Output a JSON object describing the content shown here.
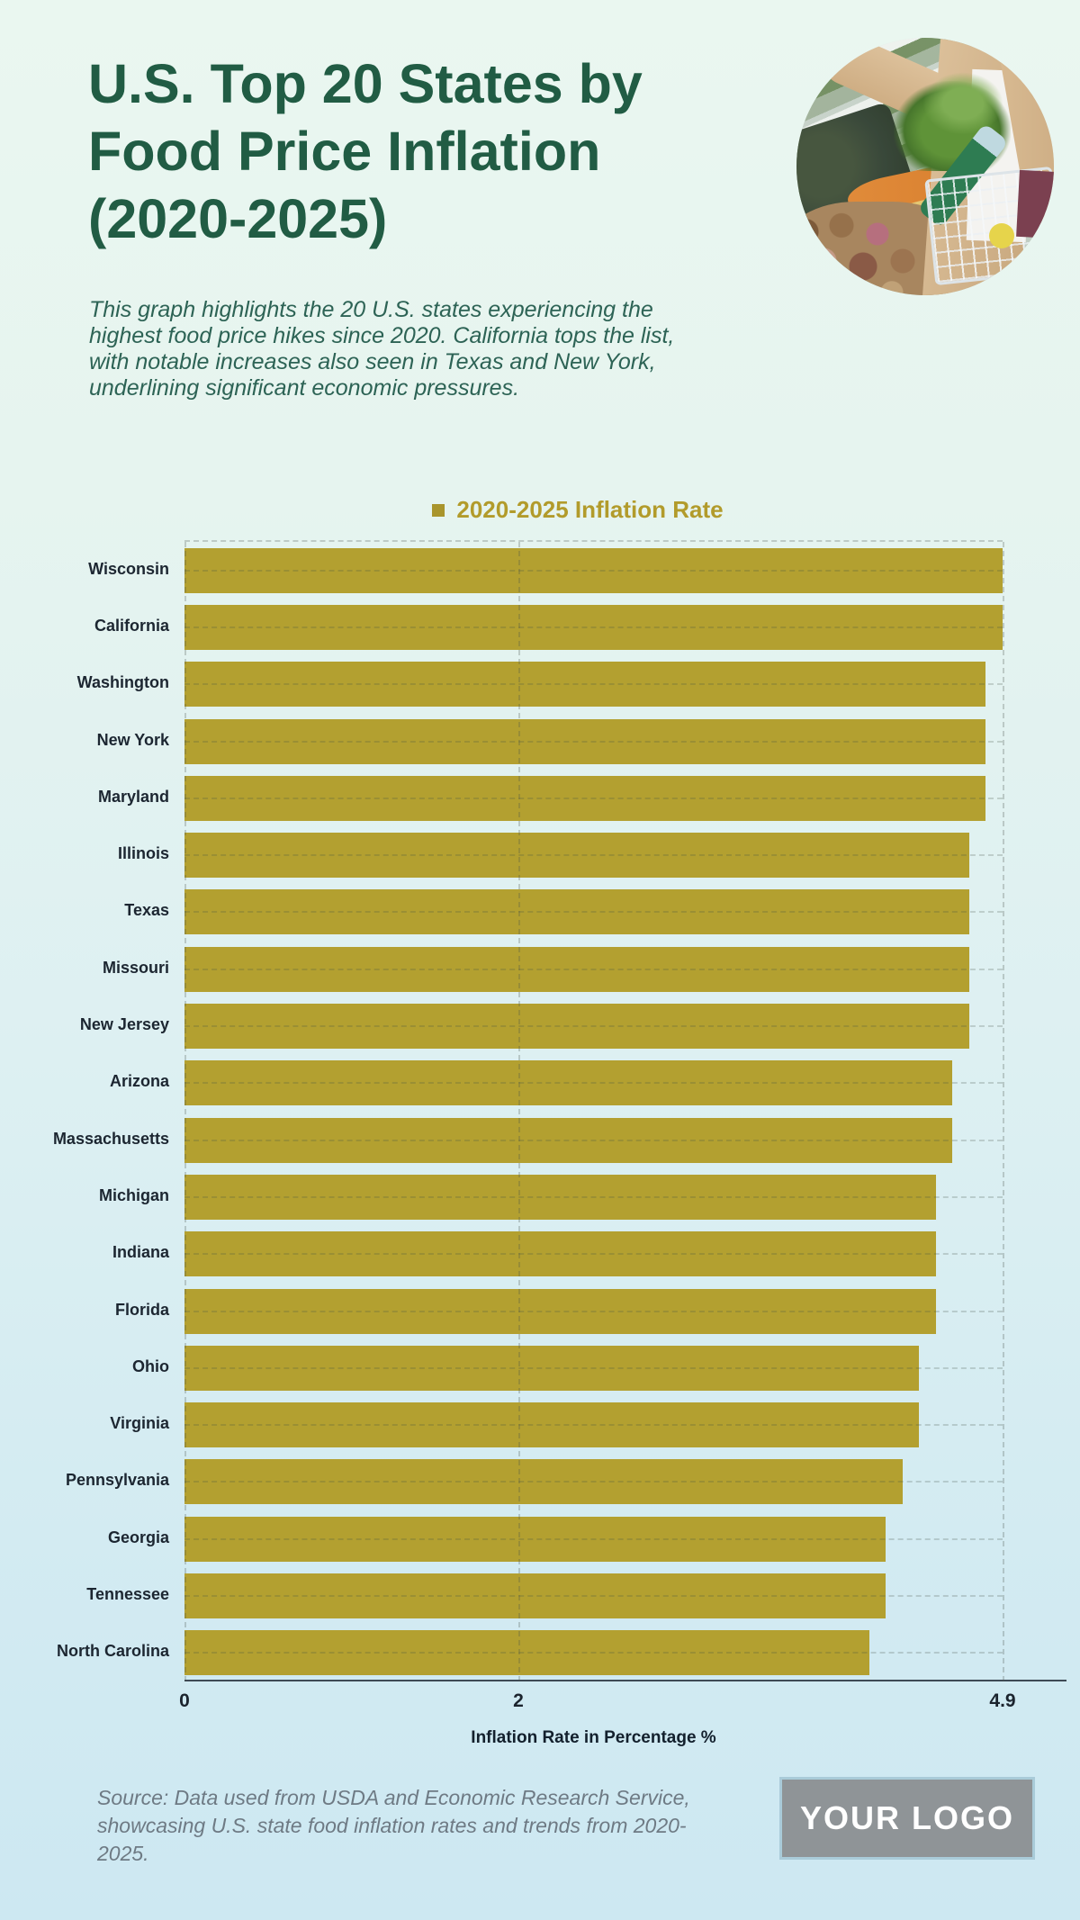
{
  "header": {
    "title": "U.S. Top 20 States by Food Price Inflation (2020-2025)",
    "subtitle": "This graph highlights the 20 U.S. states experiencing the highest food price hikes since 2020. California tops the list, with notable increases also seen in Texas and New York, underlining significant economic pressures."
  },
  "footer": {
    "source_note": "Source: Data used from USDA and Economic Research Service, showcasing U.S. state food inflation rates and trends from 2020-2025.",
    "logo_text": "YOUR LOGO"
  },
  "colors": {
    "background_top": "#eaf7f0",
    "background_bottom": "#cde8f2",
    "title_green": "#215c44",
    "subtitle_green": "#2d6355",
    "accent_gold": "#b3a030",
    "legend_gold": "#b29b2b",
    "label_dark": "#1c2631",
    "axis_line": "#3e4a55",
    "source_gray": "#6e7a84",
    "logo_gray": "#8f9497",
    "logo_border": "#a9cbd9"
  },
  "chart_data": {
    "type": "bar",
    "orientation": "horizontal",
    "legend": [
      "2020-2025 Inflation Rate"
    ],
    "legend_position": "top",
    "categories": [
      "Wisconsin",
      "California",
      "Washington",
      "New York",
      "Maryland",
      "Illinois",
      "Texas",
      "Missouri",
      "New Jersey",
      "Arizona",
      "Massachusetts",
      "Michigan",
      "Indiana",
      "Florida",
      "Ohio",
      "Virginia",
      "Pennsylvania",
      "Georgia",
      "Tennessee",
      "North Carolina"
    ],
    "values": [
      4.9,
      4.9,
      4.8,
      4.8,
      4.8,
      4.7,
      4.7,
      4.7,
      4.7,
      4.6,
      4.6,
      4.5,
      4.5,
      4.5,
      4.4,
      4.4,
      4.3,
      4.2,
      4.2,
      4.1
    ],
    "xlabel": "Inflation Rate in Percentage %",
    "xlim": [
      0,
      4.9
    ],
    "xticks": [
      "0",
      "2",
      "4.9"
    ],
    "xtick_values": [
      0,
      2,
      4.9
    ],
    "grid": "dashed"
  }
}
